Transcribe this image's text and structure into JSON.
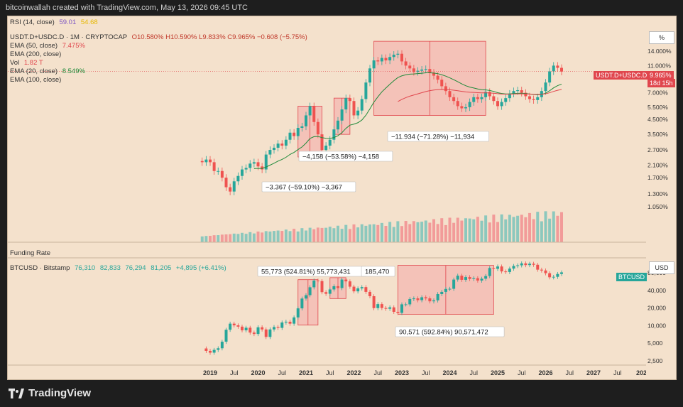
{
  "header": {
    "credit": "bitcoinwallah created with TradingView.com, May 13, 2026 09:45 UTC"
  },
  "top_panel": {
    "rsi_label": "RSI (14, close)",
    "rsi_v1": "59.01",
    "rsi_v2": "54.68",
    "symbol_label": "USDT.D+USDC.D · 1M · CRYPTOCAP",
    "ohlc": "O10.580% H10.590% L9.833% C9.965% −0.608 (−5.75%)",
    "ema50_label": "EMA (50, close)",
    "ema50_val": "7.475%",
    "ema200_label": "EMA (200, close)",
    "vol_label": "Vol",
    "vol_val": "1.82 T",
    "ema20_label": "EMA (20, close)",
    "ema20_val": "8.549%",
    "ema100_label": "EMA (100, close)",
    "price_badge": "USDT.D+USDC.D",
    "price_val": "9.965%",
    "price_time": "18d 15h",
    "scale_unit": "%",
    "y_ticks": [
      "14.000%",
      "11.000%",
      "7.000%",
      "5.500%",
      "4.500%",
      "3.500%",
      "2.700%",
      "2.100%",
      "1.700%",
      "1.300%",
      "1.050%"
    ],
    "annotations": [
      "−11.934 (−71.28%) −11,934",
      "−4,158 (−53.58%) −4,158",
      "−3.367 (−59.10%) −3,367"
    ]
  },
  "funding": {
    "label": "Funding Rate"
  },
  "bottom_panel": {
    "symbol_label": "BTCUSD · Bitstamp",
    "o": "76,310",
    "h": "82,833",
    "l": "76,294",
    "c": "81,205",
    "chg": "+4,895 (+6.41%)",
    "badge": "BTCUSD",
    "scale_unit": "USD",
    "y_ticks": [
      "80,000",
      "40,000",
      "20,000",
      "10,000",
      "5,000",
      "2,500"
    ],
    "annotations": [
      "55,773 (524.81%) 55,773,431",
      "185,470",
      "90,571 (592.84%) 90,571,472"
    ]
  },
  "x_axis": {
    "ticks": [
      "2019",
      "Jul",
      "2020",
      "Jul",
      "2021",
      "Jul",
      "2022",
      "Jul",
      "2023",
      "Jul",
      "2024",
      "Jul",
      "2025",
      "Jul",
      "2026",
      "Jul",
      "2027",
      "Jul",
      "202"
    ]
  },
  "footer": {
    "brand": "TradingView"
  },
  "colors": {
    "up": "#26a69a",
    "down": "#ef5350",
    "bg": "#f4e1cc",
    "box": "#f4a9a8",
    "ema20": "#1f8a3a",
    "ema50": "#e0464d"
  },
  "chart_data": [
    {
      "type": "candlestick",
      "title": "USDT.D+USDC.D",
      "x": [
        "2018-11",
        "2018-12",
        "2019-01",
        "2019-02",
        "2019-03",
        "2019-04",
        "2019-05",
        "2019-06",
        "2019-07",
        "2019-08",
        "2019-09",
        "2019-10",
        "2019-11",
        "2019-12",
        "2020-01",
        "2020-02",
        "2020-03",
        "2020-04",
        "2020-05",
        "2020-06",
        "2020-07",
        "2020-08",
        "2020-09",
        "2020-10",
        "2020-11",
        "2020-12",
        "2021-01",
        "2021-02",
        "2021-03",
        "2021-04",
        "2021-05",
        "2021-06",
        "2021-07",
        "2021-08",
        "2021-09",
        "2021-10",
        "2021-11",
        "2021-12",
        "2022-01",
        "2022-02",
        "2022-03",
        "2022-04",
        "2022-05",
        "2022-06",
        "2022-07",
        "2022-08",
        "2022-09",
        "2022-10",
        "2022-11",
        "2022-12",
        "2023-01",
        "2023-02",
        "2023-03",
        "2023-04",
        "2023-05",
        "2023-06",
        "2023-07",
        "2023-08",
        "2023-09",
        "2023-10",
        "2023-11",
        "2023-12",
        "2024-01",
        "2024-02",
        "2024-03",
        "2024-04",
        "2024-05",
        "2024-06",
        "2024-07",
        "2024-08",
        "2024-09",
        "2024-10",
        "2024-11",
        "2024-12",
        "2025-01",
        "2025-02",
        "2025-03",
        "2025-04",
        "2025-05",
        "2025-06",
        "2025-07",
        "2025-08",
        "2025-09",
        "2025-10",
        "2025-11",
        "2025-12",
        "2026-01",
        "2026-02",
        "2026-03",
        "2026-04",
        "2026-05"
      ],
      "close": [
        2.2,
        2.3,
        2.2,
        1.9,
        1.9,
        1.7,
        1.45,
        1.35,
        1.6,
        1.75,
        1.95,
        2.0,
        2.15,
        2.2,
        2.05,
        1.95,
        2.5,
        2.7,
        2.8,
        3.0,
        2.9,
        3.2,
        3.6,
        3.4,
        3.9,
        4.0,
        4.8,
        5.6,
        4.3,
        3.5,
        2.7,
        2.9,
        3.2,
        3.8,
        4.4,
        5.3,
        6.4,
        6.1,
        4.8,
        5.2,
        6.3,
        8.3,
        10.5,
        12.0,
        11.8,
        12.5,
        12.0,
        12.7,
        13.2,
        13.4,
        11.8,
        11.0,
        10.5,
        9.9,
        10.1,
        10.3,
        10.4,
        9.8,
        9.3,
        8.7,
        7.8,
        7.2,
        6.5,
        6.1,
        5.6,
        5.4,
        5.5,
        6.0,
        6.5,
        6.3,
        6.5,
        7.1,
        6.6,
        6.1,
        5.6,
        6.0,
        6.4,
        6.9,
        7.2,
        7.3,
        7.0,
        6.6,
        6.3,
        6.2,
        6.5,
        7.2,
        8.3,
        10.0,
        11.0,
        10.6,
        9.965
      ],
      "annotations": [
        "−11.934 (−71.28%) −11,934",
        "−4,158 (−53.58%) −4,158",
        "−3.367 (−59.10%) −3,367"
      ]
    },
    {
      "type": "candlestick",
      "title": "BTCUSD · Bitstamp",
      "x": [
        "2018-12",
        "2019-01",
        "2019-02",
        "2019-03",
        "2019-04",
        "2019-05",
        "2019-06",
        "2019-07",
        "2019-08",
        "2019-09",
        "2019-10",
        "2019-11",
        "2019-12",
        "2020-01",
        "2020-02",
        "2020-03",
        "2020-04",
        "2020-05",
        "2020-06",
        "2020-07",
        "2020-08",
        "2020-09",
        "2020-10",
        "2020-11",
        "2020-12",
        "2021-01",
        "2021-02",
        "2021-03",
        "2021-04",
        "2021-05",
        "2021-06",
        "2021-07",
        "2021-08",
        "2021-09",
        "2021-10",
        "2021-11",
        "2021-12",
        "2022-01",
        "2022-02",
        "2022-03",
        "2022-04",
        "2022-05",
        "2022-06",
        "2022-07",
        "2022-08",
        "2022-09",
        "2022-10",
        "2022-11",
        "2022-12",
        "2023-01",
        "2023-02",
        "2023-03",
        "2023-04",
        "2023-05",
        "2023-06",
        "2023-07",
        "2023-08",
        "2023-09",
        "2023-10",
        "2023-11",
        "2023-12",
        "2024-01",
        "2024-02",
        "2024-03",
        "2024-04",
        "2024-05",
        "2024-06",
        "2024-07",
        "2024-08",
        "2024-09",
        "2024-10",
        "2024-11",
        "2024-12",
        "2025-01",
        "2025-02",
        "2025-03",
        "2025-04",
        "2025-05",
        "2025-06",
        "2025-07",
        "2025-08",
        "2025-09",
        "2025-10",
        "2025-11",
        "2025-12",
        "2026-01",
        "2026-02",
        "2026-03",
        "2026-04",
        "2026-05"
      ],
      "close": [
        3700,
        3450,
        3850,
        4100,
        5300,
        8500,
        10800,
        10100,
        9600,
        8300,
        9200,
        7600,
        7200,
        9350,
        8600,
        6400,
        8600,
        9450,
        9150,
        11300,
        11650,
        10800,
        13800,
        19700,
        29000,
        33100,
        45200,
        58800,
        57700,
        37300,
        35000,
        41500,
        47100,
        43800,
        61300,
        57000,
        46300,
        38500,
        43200,
        45500,
        37700,
        31800,
        19900,
        23300,
        20000,
        19400,
        20500,
        17200,
        16500,
        23100,
        23100,
        28500,
        29200,
        27200,
        30500,
        29200,
        26000,
        27000,
        34600,
        37700,
        42300,
        42600,
        61200,
        71300,
        60600,
        67500,
        62700,
        64600,
        58900,
        63300,
        70300,
        96400,
        93400,
        102400,
        84300,
        82500,
        94200,
        104600,
        107200,
        115700,
        108200,
        114000,
        109500,
        90400,
        87500,
        78600,
        67000,
        68200,
        76300,
        81205
      ]
    }
  ]
}
